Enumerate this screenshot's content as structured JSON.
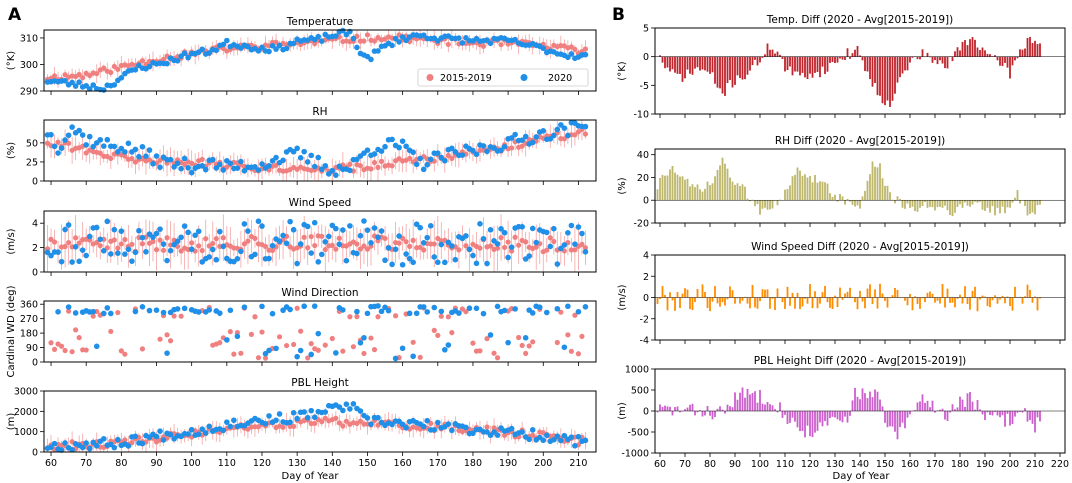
{
  "panel_labels": {
    "left": "A",
    "right": "B"
  },
  "colors": {
    "hist": "#f08080",
    "cur": "#1f8fe8",
    "temp_diff": "#c0242b",
    "rh_diff": "#bdb76b",
    "ws_diff": "#ff8c00",
    "pbl_diff": "#cc5fcc",
    "errbar": "#f4a4a4"
  },
  "chart_data": [
    {
      "id": "temp",
      "type": "scatter",
      "title": "Temperature",
      "ylabel": "(°K)",
      "xlim": [
        58,
        215
      ],
      "ylim": [
        290,
        313
      ],
      "yticks": [
        290,
        300,
        310
      ],
      "legend": {
        "location": "lower-right",
        "entries": [
          "2015-2019",
          "2020"
        ]
      },
      "series": [
        {
          "name": "2015-2019",
          "profile": [
            [
              59,
              295
            ],
            [
              70,
              296
            ],
            [
              80,
              299
            ],
            [
              90,
              302
            ],
            [
              100,
              304
            ],
            [
              110,
              306
            ],
            [
              120,
              307
            ],
            [
              130,
              308
            ],
            [
              140,
              309
            ],
            [
              150,
              310
            ],
            [
              160,
              310
            ],
            [
              170,
              309
            ],
            [
              180,
              308
            ],
            [
              190,
              308
            ],
            [
              200,
              307
            ],
            [
              212,
              305
            ]
          ],
          "err": 2.5,
          "amp": 1.2,
          "seed": 11
        },
        {
          "name": "2020",
          "profile": [
            [
              59,
              294
            ],
            [
              70,
              292
            ],
            [
              75,
              291
            ],
            [
              80,
              295
            ],
            [
              85,
              299
            ],
            [
              90,
              300
            ],
            [
              95,
              302
            ],
            [
              100,
              304
            ],
            [
              105,
              305
            ],
            [
              110,
              308
            ],
            [
              115,
              307
            ],
            [
              120,
              306
            ],
            [
              125,
              306
            ],
            [
              130,
              309
            ],
            [
              135,
              309
            ],
            [
              140,
              311
            ],
            [
              145,
              312
            ],
            [
              148,
              305
            ],
            [
              150,
              302
            ],
            [
              155,
              307
            ],
            [
              160,
              310
            ],
            [
              165,
              311
            ],
            [
              170,
              310
            ],
            [
              180,
              309
            ],
            [
              190,
              309
            ],
            [
              200,
              306
            ],
            [
              205,
              304
            ],
            [
              212,
              303
            ]
          ],
          "amp": 1.2,
          "seed": 23
        }
      ]
    },
    {
      "id": "rh",
      "type": "scatter",
      "title": "RH",
      "ylabel": "(%)",
      "xlim": [
        58,
        215
      ],
      "ylim": [
        0,
        80
      ],
      "yticks": [
        0,
        25,
        50
      ],
      "series": [
        {
          "name": "2015-2019",
          "profile": [
            [
              59,
              52
            ],
            [
              70,
              40
            ],
            [
              80,
              30
            ],
            [
              90,
              27
            ],
            [
              100,
              25
            ],
            [
              110,
              20
            ],
            [
              120,
              18
            ],
            [
              130,
              17
            ],
            [
              140,
              16
            ],
            [
              150,
              18
            ],
            [
              160,
              25
            ],
            [
              170,
              30
            ],
            [
              180,
              38
            ],
            [
              190,
              45
            ],
            [
              200,
              55
            ],
            [
              212,
              65
            ]
          ],
          "err": 12,
          "amp": 5,
          "seed": 31
        },
        {
          "name": "2020",
          "profile": [
            [
              59,
              65
            ],
            [
              62,
              45
            ],
            [
              66,
              70
            ],
            [
              70,
              55
            ],
            [
              75,
              48
            ],
            [
              80,
              45
            ],
            [
              85,
              38
            ],
            [
              90,
              28
            ],
            [
              95,
              22
            ],
            [
              100,
              20
            ],
            [
              105,
              22
            ],
            [
              110,
              18
            ],
            [
              115,
              20
            ],
            [
              120,
              22
            ],
            [
              125,
              30
            ],
            [
              130,
              35
            ],
            [
              135,
              25
            ],
            [
              140,
              15
            ],
            [
              145,
              17
            ],
            [
              150,
              40
            ],
            [
              155,
              48
            ],
            [
              160,
              45
            ],
            [
              165,
              22
            ],
            [
              170,
              30
            ],
            [
              175,
              35
            ],
            [
              180,
              40
            ],
            [
              190,
              50
            ],
            [
              200,
              62
            ],
            [
              212,
              72
            ]
          ],
          "amp": 9,
          "seed": 37
        }
      ]
    },
    {
      "id": "ws",
      "type": "scatter",
      "title": "Wind Speed",
      "ylabel": "(m/s)",
      "xlim": [
        58,
        215
      ],
      "ylim": [
        0,
        5
      ],
      "yticks": [
        0,
        2,
        4
      ],
      "series": [
        {
          "name": "2015-2019",
          "profile": [
            [
              59,
              2.2
            ],
            [
              100,
              2.3
            ],
            [
              150,
              2.4
            ],
            [
              212,
              2.2
            ]
          ],
          "err": 1.3,
          "amp": 0.6,
          "seed": 41
        },
        {
          "name": "2020",
          "profile": [
            [
              59,
              2.5
            ],
            [
              212,
              2.3
            ]
          ],
          "amp": 1.8,
          "seed": 43
        }
      ]
    },
    {
      "id": "wd",
      "type": "scatter",
      "title": "Wind Direction",
      "ylabel": "Cardinal WD (deg)",
      "xlim": [
        58,
        215
      ],
      "ylim": [
        0,
        380
      ],
      "yticks": [
        0,
        90,
        180,
        270,
        360
      ],
      "series": [
        {
          "name": "2015-2019",
          "clusters": [
            [
              310,
              30,
              0.35
            ],
            [
              110,
              90,
              0.65
            ]
          ],
          "seed": 51
        },
        {
          "name": "2020",
          "clusters": [
            [
              325,
              25,
              0.75
            ],
            [
              100,
              80,
              0.25
            ]
          ],
          "seed": 53
        }
      ]
    },
    {
      "id": "pbl",
      "type": "scatter",
      "title": "PBL Height",
      "ylabel": "(m)",
      "xlim": [
        58,
        215
      ],
      "ylim": [
        0,
        3000
      ],
      "yticks": [
        0,
        1000,
        2000,
        3000
      ],
      "series": [
        {
          "name": "2015-2019",
          "profile": [
            [
              59,
              300
            ],
            [
              80,
              400
            ],
            [
              100,
              900
            ],
            [
              120,
              1300
            ],
            [
              140,
              1500
            ],
            [
              160,
              1300
            ],
            [
              180,
              1100
            ],
            [
              200,
              800
            ],
            [
              212,
              500
            ]
          ],
          "err": 350,
          "amp": 200,
          "seed": 61
        },
        {
          "name": "2020",
          "profile": [
            [
              59,
              300
            ],
            [
              80,
              450
            ],
            [
              90,
              800
            ],
            [
              100,
              1000
            ],
            [
              115,
              1500
            ],
            [
              130,
              1700
            ],
            [
              140,
              2100
            ],
            [
              145,
              2300
            ],
            [
              150,
              1500
            ],
            [
              160,
              1400
            ],
            [
              180,
              1100
            ],
            [
              200,
              800
            ],
            [
              212,
              450
            ]
          ],
          "amp": 250,
          "seed": 67
        }
      ]
    },
    {
      "id": "tdiff",
      "type": "bar",
      "title": "Temp. Diff (2020 - Avg[2015-2019])",
      "ylabel": "(°K)",
      "xlim": [
        58,
        222
      ],
      "ylim": [
        -10,
        5
      ],
      "yticks": [
        -10,
        -5,
        0,
        5
      ],
      "profile": [
        [
          59,
          0.5
        ],
        [
          64,
          -3
        ],
        [
          70,
          -3.5
        ],
        [
          75,
          -2
        ],
        [
          80,
          -3
        ],
        [
          85,
          -6.5
        ],
        [
          90,
          -4
        ],
        [
          95,
          -3
        ],
        [
          100,
          -0.5
        ],
        [
          104,
          2
        ],
        [
          107,
          1
        ],
        [
          110,
          -2
        ],
        [
          115,
          -3.5
        ],
        [
          120,
          -3
        ],
        [
          125,
          -2.5
        ],
        [
          130,
          -1
        ],
        [
          135,
          0.5
        ],
        [
          140,
          1
        ],
        [
          143,
          -3
        ],
        [
          148,
          -7
        ],
        [
          152,
          -8
        ],
        [
          155,
          -5
        ],
        [
          160,
          -1
        ],
        [
          165,
          0.5
        ],
        [
          170,
          -1
        ],
        [
          175,
          -1.5
        ],
        [
          180,
          1.5
        ],
        [
          184,
          3.5
        ],
        [
          188,
          2
        ],
        [
          192,
          -0.5
        ],
        [
          197,
          -1
        ],
        [
          200,
          -3
        ],
        [
          204,
          1
        ],
        [
          208,
          3.5
        ],
        [
          212,
          2
        ]
      ],
      "amp": 1.0,
      "seed": 71
    },
    {
      "id": "rhdiff",
      "type": "bar",
      "title": "RH Diff (2020 - Avg[2015-2019])",
      "ylabel": "(%)",
      "xlim": [
        58,
        222
      ],
      "ylim": [
        -20,
        45
      ],
      "yticks": [
        -20,
        0,
        20,
        40
      ],
      "profile": [
        [
          59,
          12
        ],
        [
          64,
          30
        ],
        [
          68,
          18
        ],
        [
          75,
          10
        ],
        [
          80,
          12
        ],
        [
          85,
          35
        ],
        [
          90,
          15
        ],
        [
          95,
          5
        ],
        [
          100,
          -8
        ],
        [
          105,
          -3
        ],
        [
          110,
          5
        ],
        [
          115,
          25
        ],
        [
          120,
          20
        ],
        [
          125,
          18
        ],
        [
          130,
          5
        ],
        [
          135,
          -3
        ],
        [
          140,
          -5
        ],
        [
          145,
          32
        ],
        [
          148,
          28
        ],
        [
          152,
          5
        ],
        [
          158,
          -8
        ],
        [
          162,
          -6
        ],
        [
          167,
          -5
        ],
        [
          172,
          -5
        ],
        [
          178,
          -10
        ],
        [
          183,
          -3
        ],
        [
          188,
          -3
        ],
        [
          193,
          -10
        ],
        [
          198,
          -8
        ],
        [
          203,
          5
        ],
        [
          208,
          -15
        ],
        [
          212,
          -5
        ]
      ],
      "amp": 5,
      "seed": 73
    },
    {
      "id": "wsdiff",
      "type": "bar",
      "title": "Wind Speed Diff (2020 - Avg[2015-2019])",
      "ylabel": "(m/s)",
      "xlim": [
        58,
        222
      ],
      "ylim": [
        -4,
        4
      ],
      "yticks": [
        -4,
        -2,
        0,
        2,
        4
      ],
      "profile": [
        [
          59,
          0
        ],
        [
          212,
          0
        ]
      ],
      "amp": 1.3,
      "seed": 79
    },
    {
      "id": "pbldiff",
      "type": "bar",
      "title": "PBL Height Diff (2020 - Avg[2015-2019])",
      "ylabel": "(m)",
      "xlim": [
        58,
        222
      ],
      "ylim": [
        -1000,
        1000
      ],
      "yticks": [
        -1000,
        -500,
        0,
        500,
        1000
      ],
      "profile": [
        [
          59,
          50
        ],
        [
          75,
          0
        ],
        [
          85,
          -50
        ],
        [
          90,
          300
        ],
        [
          95,
          450
        ],
        [
          100,
          350
        ],
        [
          105,
          300
        ],
        [
          110,
          -100
        ],
        [
          115,
          -400
        ],
        [
          120,
          -500
        ],
        [
          125,
          -400
        ],
        [
          130,
          -200
        ],
        [
          135,
          -300
        ],
        [
          138,
          500
        ],
        [
          143,
          350
        ],
        [
          147,
          450
        ],
        [
          150,
          -300
        ],
        [
          155,
          -600
        ],
        [
          160,
          -150
        ],
        [
          165,
          300
        ],
        [
          170,
          100
        ],
        [
          175,
          -100
        ],
        [
          180,
          250
        ],
        [
          185,
          300
        ],
        [
          190,
          -200
        ],
        [
          195,
          -150
        ],
        [
          200,
          -250
        ],
        [
          205,
          50
        ],
        [
          210,
          -350
        ],
        [
          212,
          -200
        ]
      ],
      "amp": 180,
      "seed": 83
    }
  ],
  "axes": {
    "xticks": [
      60,
      70,
      80,
      90,
      100,
      110,
      120,
      130,
      140,
      150,
      160,
      170,
      180,
      190,
      200,
      210,
      220
    ],
    "xlabel_left": "Day of Year",
    "xlabel_right": "Day of Year"
  }
}
